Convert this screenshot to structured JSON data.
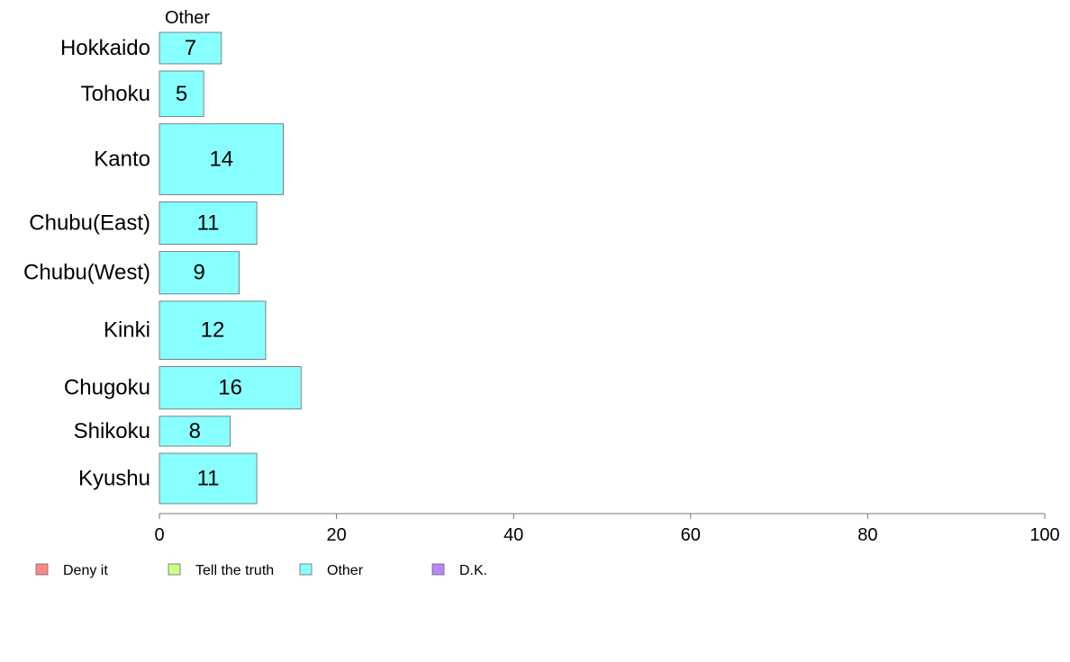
{
  "chart_data": {
    "type": "bar",
    "orientation": "horizontal",
    "title": "Other",
    "categories": [
      "Hokkaido",
      "Tohoku",
      "Kanto",
      "Chubu(East)",
      "Chubu(West)",
      "Kinki",
      "Chugoku",
      "Shikoku",
      "Kyushu"
    ],
    "values": [
      7,
      5,
      14,
      11,
      9,
      12,
      16,
      8,
      11
    ],
    "bar_weights": [
      1.0,
      1.45,
      2.25,
      1.35,
      1.35,
      1.85,
      1.35,
      0.95,
      1.6
    ],
    "xlim": [
      0,
      100
    ],
    "xticks": [
      0,
      20,
      40,
      60,
      80,
      100
    ],
    "bar_color": "#88ffff",
    "legend_position": "bottom-left",
    "legend": [
      {
        "label": "Deny it",
        "color": "#ff8888"
      },
      {
        "label": "Tell the truth",
        "color": "#ccff88"
      },
      {
        "label": "Other",
        "color": "#88ffff"
      },
      {
        "label": "D.K.",
        "color": "#bb88ff"
      }
    ]
  }
}
